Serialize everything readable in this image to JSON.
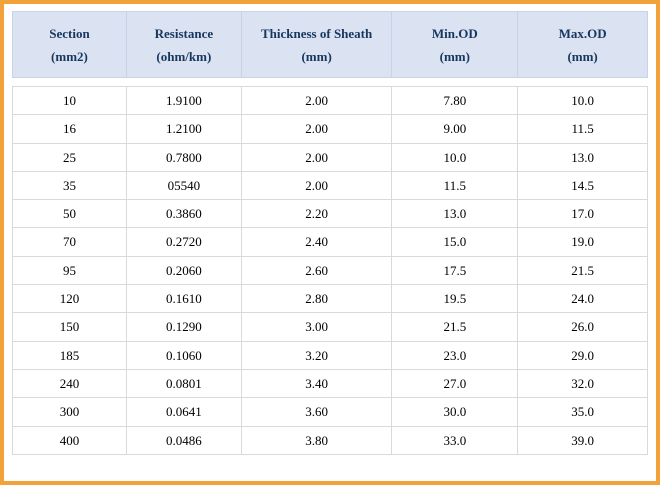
{
  "table": {
    "headers": [
      {
        "label": "Section",
        "unit": "(mm2)"
      },
      {
        "label": "Resistance",
        "unit": "(ohm/km)"
      },
      {
        "label": "Thickness of Sheath",
        "unit": "(mm)"
      },
      {
        "label": "Min.OD",
        "unit": "(mm)"
      },
      {
        "label": "Max.OD",
        "unit": "(mm)"
      }
    ],
    "rows": [
      [
        "10",
        "1.9100",
        "2.00",
        "7.80",
        "10.0"
      ],
      [
        "16",
        "1.2100",
        "2.00",
        "9.00",
        "11.5"
      ],
      [
        "25",
        "0.7800",
        "2.00",
        "10.0",
        "13.0"
      ],
      [
        "35",
        "05540",
        "2.00",
        "11.5",
        "14.5"
      ],
      [
        "50",
        "0.3860",
        "2.20",
        "13.0",
        "17.0"
      ],
      [
        "70",
        "0.2720",
        "2.40",
        "15.0",
        "19.0"
      ],
      [
        "95",
        "0.2060",
        "2.60",
        "17.5",
        "21.5"
      ],
      [
        "120",
        "0.1610",
        "2.80",
        "19.5",
        "24.0"
      ],
      [
        "150",
        "0.1290",
        "3.00",
        "21.5",
        "26.0"
      ],
      [
        "185",
        "0.1060",
        "3.20",
        "23.0",
        "29.0"
      ],
      [
        "240",
        "0.0801",
        "3.40",
        "27.0",
        "32.0"
      ],
      [
        "300",
        "0.0641",
        "3.60",
        "30.0",
        "35.0"
      ],
      [
        "400",
        "0.0486",
        "3.80",
        "33.0",
        "39.0"
      ]
    ]
  },
  "colors": {
    "frame": "#F2A23A",
    "header_bg": "#DBE2F1",
    "header_text": "#17375E",
    "grid": "#D9D9D9"
  }
}
